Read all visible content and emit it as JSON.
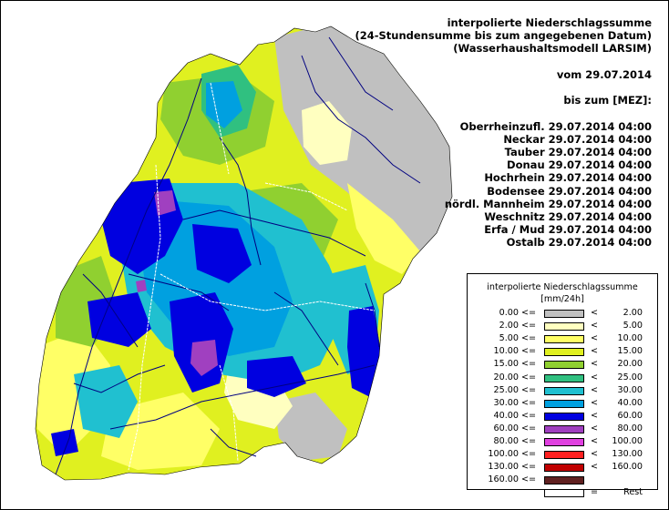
{
  "header": {
    "title_lines": [
      "interpolierte Niederschlagssumme",
      "(24-Stundensumme bis zum angegebenen Datum)",
      "(Wasserhaushaltsmodell LARSIM)"
    ],
    "date_line": "vom 29.07.2014",
    "until_line": "bis zum [MEZ]:"
  },
  "basins": [
    {
      "name": "Oberrheinzufl.",
      "time": "29.07.2014 04:00"
    },
    {
      "name": "Neckar",
      "time": "29.07.2014 04:00"
    },
    {
      "name": "Tauber",
      "time": "29.07.2014 04:00"
    },
    {
      "name": "Donau",
      "time": "29.07.2014 04:00"
    },
    {
      "name": "Hochrhein",
      "time": "29.07.2014 04:00"
    },
    {
      "name": "Bodensee",
      "time": "29.07.2014 04:00"
    },
    {
      "name": "nördl. Mannheim",
      "time": "29.07.2014 04:00"
    },
    {
      "name": "Weschnitz",
      "time": "29.07.2014 04:00"
    },
    {
      "name": "Erfa / Mud",
      "time": "29.07.2014 04:00"
    },
    {
      "name": "Ostalb",
      "time": "29.07.2014 04:00"
    }
  ],
  "legend": {
    "title": "interpolierte Niederschlagssumme",
    "unit": "[mm/24h]",
    "op_lower": "<=",
    "op_upper": "<",
    "rows": [
      {
        "min": "0.00",
        "max": "2.00",
        "color": "#c0c0c0"
      },
      {
        "min": "2.00",
        "max": "5.00",
        "color": "#ffffc0"
      },
      {
        "min": "5.00",
        "max": "10.00",
        "color": "#ffff66"
      },
      {
        "min": "10.00",
        "max": "15.00",
        "color": "#e0f020"
      },
      {
        "min": "15.00",
        "max": "20.00",
        "color": "#90d030"
      },
      {
        "min": "20.00",
        "max": "25.00",
        "color": "#30c080"
      },
      {
        "min": "25.00",
        "max": "30.00",
        "color": "#20c0d0"
      },
      {
        "min": "30.00",
        "max": "40.00",
        "color": "#00a0e0"
      },
      {
        "min": "40.00",
        "max": "60.00",
        "color": "#0000e0"
      },
      {
        "min": "60.00",
        "max": "80.00",
        "color": "#a040c0"
      },
      {
        "min": "80.00",
        "max": "100.00",
        "color": "#e040e0"
      },
      {
        "min": "100.00",
        "max": "130.00",
        "color": "#ff2020"
      },
      {
        "min": "130.00",
        "max": "160.00",
        "color": "#c00000"
      },
      {
        "min": "160.00",
        "max": "",
        "color": "#602020"
      }
    ],
    "rest": {
      "op": "=",
      "label": "Rest",
      "color": "#ffffff"
    }
  },
  "map_colors": {
    "river": "#000080",
    "boundary": "#ffffff",
    "region_outline": "#000000"
  }
}
